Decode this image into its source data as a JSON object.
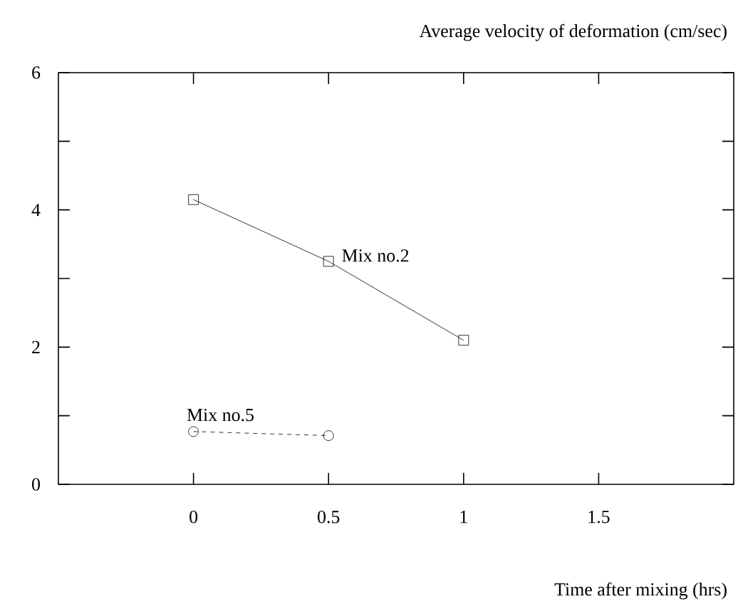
{
  "chart_data": {
    "type": "line",
    "title": "Average velocity of deformation (cm/sec)",
    "xlabel": "Time after mixing (hrs)",
    "xlim": [
      -0.5,
      2
    ],
    "xticks": [
      0,
      0.5,
      1,
      1.5
    ],
    "ylim": [
      0,
      6
    ],
    "yticks": [
      0,
      2,
      4,
      6
    ],
    "grid": false,
    "legend": false,
    "series": [
      {
        "name": "Mix no.2",
        "color": "#000000",
        "marker": "square",
        "line_style": "solid",
        "x": [
          0,
          0.5,
          1
        ],
        "values": [
          4.15,
          3.25,
          2.1
        ]
      },
      {
        "name": "Mix no.5",
        "color": "#000000",
        "marker": "circle",
        "line_style": "dashed",
        "x": [
          0,
          0.5
        ],
        "values": [
          0.77,
          0.71
        ]
      }
    ]
  }
}
